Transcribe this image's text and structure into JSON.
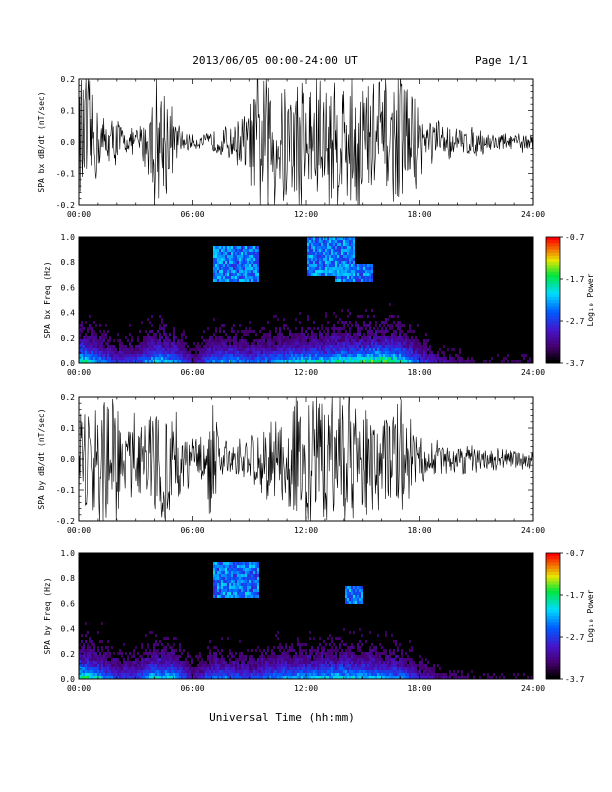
{
  "header": {
    "title": "2013/06/05  00:00-24:00 UT",
    "page": "Page 1/1"
  },
  "chart_data": [
    {
      "type": "line",
      "description_key": "panel-1",
      "ylabel": "SPA bx dB/dt (nT/sec)",
      "ylim": [
        -0.2,
        0.2
      ],
      "yticks": [
        "-0.2",
        "-0.1",
        "0.0",
        "0.1",
        "0.2"
      ],
      "xlim": [
        0,
        24
      ],
      "xticks": [
        "00:00",
        "06:00",
        "12:00",
        "18:00",
        "24:00"
      ],
      "envelope_x_hours": [
        0,
        0.5,
        1,
        1.5,
        2,
        2.5,
        3,
        3.5,
        4,
        4.5,
        5,
        5.5,
        6,
        6.5,
        7,
        7.5,
        8,
        8.5,
        9,
        9.5,
        10,
        10.5,
        11,
        11.5,
        12,
        12.5,
        13,
        13.5,
        14,
        14.5,
        15,
        15.5,
        16,
        16.5,
        17,
        17.5,
        18,
        18.5,
        19,
        19.5,
        20,
        20.5,
        21,
        21.5,
        22,
        22.5,
        23,
        23.5,
        24
      ],
      "envelope_amplitude": [
        0.2,
        0.2,
        0.1,
        0.06,
        0.08,
        0.03,
        0.04,
        0.07,
        0.2,
        0.2,
        0.08,
        0.03,
        0.02,
        0.02,
        0.03,
        0.04,
        0.05,
        0.07,
        0.1,
        0.2,
        0.2,
        0.2,
        0.2,
        0.2,
        0.2,
        0.2,
        0.2,
        0.2,
        0.2,
        0.2,
        0.2,
        0.2,
        0.2,
        0.14,
        0.2,
        0.2,
        0.09,
        0.07,
        0.06,
        0.05,
        0.04,
        0.04,
        0.04,
        0.03,
        0.03,
        0.025,
        0.02,
        0.03,
        0.02
      ]
    },
    {
      "type": "heatmap",
      "description_key": "panel-2",
      "ylabel": "SPA bx Freq (Hz)",
      "ylim": [
        0.0,
        1.0
      ],
      "yticks": [
        "0.0",
        "0.2",
        "0.4",
        "0.6",
        "0.8",
        "1.0"
      ],
      "xlim": [
        0,
        24
      ],
      "xticks": [
        "00:00",
        "06:00",
        "12:00",
        "18:00",
        "24:00"
      ],
      "colorbar": {
        "label": "Log₁₀ Power",
        "min": -3.7,
        "max": -0.7,
        "ticks": [
          "-0.7",
          "-1.7",
          "-2.7",
          "-3.7"
        ]
      },
      "intensity_x_hours": [
        0,
        1,
        2,
        3,
        4,
        5,
        6,
        7,
        8,
        9,
        10,
        11,
        12,
        13,
        14,
        15,
        16,
        17,
        18,
        19,
        20,
        21,
        22,
        23,
        24
      ],
      "intensity": [
        0.7,
        0.5,
        0.3,
        0.35,
        0.6,
        0.5,
        0.2,
        0.45,
        0.5,
        0.4,
        0.45,
        0.55,
        0.6,
        0.6,
        0.65,
        0.7,
        0.75,
        0.65,
        0.35,
        0.2,
        0.15,
        0.1,
        0.1,
        0.1,
        0.1
      ],
      "high_freq_bursts": [
        {
          "x_hours": [
            7.0,
            9.5
          ],
          "freq_hz": [
            0.65,
            0.95
          ]
        },
        {
          "x_hours": [
            12.0,
            14.5
          ],
          "freq_hz": [
            0.7,
            1.0
          ]
        },
        {
          "x_hours": [
            13.5,
            15.5
          ],
          "freq_hz": [
            0.65,
            0.8
          ]
        }
      ]
    },
    {
      "type": "line",
      "description_key": "panel-3",
      "ylabel": "SPA by dB/dt (nT/sec)",
      "ylim": [
        -0.2,
        0.2
      ],
      "yticks": [
        "-0.2",
        "-0.1",
        "0.0",
        "0.1",
        "0.2"
      ],
      "xlim": [
        0,
        24
      ],
      "xticks": [
        "00:00",
        "06:00",
        "12:00",
        "18:00",
        "24:00"
      ],
      "envelope_x_hours": [
        0,
        0.5,
        1,
        1.5,
        2,
        2.5,
        3,
        3.5,
        4,
        4.5,
        5,
        5.5,
        6,
        6.5,
        7,
        7.5,
        8,
        8.5,
        9,
        9.5,
        10,
        10.5,
        11,
        11.5,
        12,
        12.5,
        13,
        13.5,
        14,
        14.5,
        15,
        15.5,
        16,
        16.5,
        17,
        17.5,
        18,
        18.5,
        19,
        19.5,
        20,
        20.5,
        21,
        21.5,
        22,
        22.5,
        23,
        23.5,
        24
      ],
      "envelope_amplitude": [
        0.2,
        0.2,
        0.2,
        0.15,
        0.2,
        0.1,
        0.12,
        0.1,
        0.2,
        0.2,
        0.2,
        0.1,
        0.06,
        0.08,
        0.2,
        0.06,
        0.05,
        0.06,
        0.07,
        0.08,
        0.12,
        0.12,
        0.14,
        0.2,
        0.18,
        0.2,
        0.2,
        0.2,
        0.2,
        0.2,
        0.18,
        0.16,
        0.13,
        0.14,
        0.16,
        0.13,
        0.08,
        0.06,
        0.05,
        0.04,
        0.04,
        0.04,
        0.04,
        0.035,
        0.03,
        0.03,
        0.025,
        0.03,
        0.025
      ]
    },
    {
      "type": "heatmap",
      "description_key": "panel-4",
      "ylabel": "SPA by Freq (Hz)",
      "ylim": [
        0.0,
        1.0
      ],
      "yticks": [
        "0.0",
        "0.2",
        "0.4",
        "0.6",
        "0.8",
        "1.0"
      ],
      "xlim": [
        0,
        24
      ],
      "xticks": [
        "00:00",
        "06:00",
        "12:00",
        "18:00",
        "24:00"
      ],
      "colorbar": {
        "label": "Log₁₀ Power",
        "min": -3.7,
        "max": -0.7,
        "ticks": [
          "-0.7",
          "-1.7",
          "-2.7",
          "-3.7"
        ]
      },
      "intensity_x_hours": [
        0,
        1,
        2,
        3,
        4,
        5,
        6,
        7,
        8,
        9,
        10,
        11,
        12,
        13,
        14,
        15,
        16,
        17,
        18,
        19,
        20,
        21,
        22,
        23,
        24
      ],
      "intensity": [
        0.75,
        0.55,
        0.35,
        0.35,
        0.6,
        0.55,
        0.2,
        0.45,
        0.4,
        0.35,
        0.45,
        0.5,
        0.55,
        0.55,
        0.6,
        0.55,
        0.5,
        0.45,
        0.25,
        0.15,
        0.12,
        0.1,
        0.1,
        0.1,
        0.1
      ],
      "high_freq_bursts": [
        {
          "x_hours": [
            7.0,
            9.5
          ],
          "freq_hz": [
            0.65,
            0.95
          ]
        },
        {
          "x_hours": [
            14.0,
            15.0
          ],
          "freq_hz": [
            0.6,
            0.75
          ]
        }
      ]
    }
  ],
  "xaxis_title": "Universal Time (hh:mm)"
}
